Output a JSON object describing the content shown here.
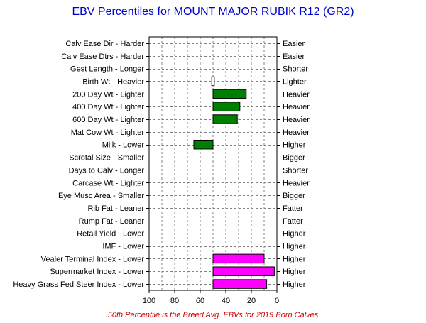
{
  "chart_data": {
    "type": "bar",
    "orientation": "horizontal-floating",
    "title": "EBV Percentiles for MOUNT MAJOR RUBIK R12 (GR2)",
    "footnote": "50th Percentile is the Breed Avg. EBVs for 2019 Born Calves",
    "xlim": [
      100,
      0
    ],
    "xticks": [
      "100",
      "80",
      "60",
      "40",
      "20",
      "0"
    ],
    "grid": true,
    "colors": {
      "green": "#008000",
      "magenta": "#ff00ff",
      "white": "#ffffff",
      "title": "#0000cc",
      "footnote": "#cc0000"
    },
    "rows": [
      {
        "left": "Calv Ease Dir - Harder",
        "right": "Easier"
      },
      {
        "left": "Calv Ease Dtrs - Harder",
        "right": "Easier"
      },
      {
        "left": "Gest Length - Longer",
        "right": "Shorter"
      },
      {
        "left": "Birth Wt - Heavier",
        "right": "Lighter",
        "bar": [
          49,
          51
        ],
        "color": "white"
      },
      {
        "left": "200 Day Wt - Lighter",
        "right": "Heavier",
        "bar": [
          50,
          24
        ],
        "color": "green"
      },
      {
        "left": "400 Day Wt - Lighter",
        "right": "Heavier",
        "bar": [
          50,
          29
        ],
        "color": "green"
      },
      {
        "left": "600 Day Wt - Lighter",
        "right": "Heavier",
        "bar": [
          50,
          31
        ],
        "color": "green"
      },
      {
        "left": "Mat Cow Wt - Lighter",
        "right": "Heavier"
      },
      {
        "left": "Milk - Lower",
        "right": "Higher",
        "bar": [
          50,
          65
        ],
        "color": "green"
      },
      {
        "left": "Scrotal Size - Smaller",
        "right": "Bigger"
      },
      {
        "left": "Days to Calv - Longer",
        "right": "Shorter"
      },
      {
        "left": "Carcase Wt - Lighter",
        "right": "Heavier"
      },
      {
        "left": "Eye Musc Area - Smaller",
        "right": "Bigger"
      },
      {
        "left": "Rib Fat - Leaner",
        "right": "Fatter"
      },
      {
        "left": "Rump Fat - Leaner",
        "right": "Fatter"
      },
      {
        "left": "Retail Yield - Lower",
        "right": "Higher"
      },
      {
        "left": "IMF - Lower",
        "right": "Higher"
      },
      {
        "left": "Vealer Terminal Index - Lower",
        "right": "Higher",
        "bar": [
          50,
          10
        ],
        "color": "magenta"
      },
      {
        "left": "Supermarket Index - Lower",
        "right": "Higher",
        "bar": [
          50,
          2
        ],
        "color": "magenta"
      },
      {
        "left": "Heavy Grass Fed Steer Index - Lower",
        "right": "Higher",
        "bar": [
          50,
          8
        ],
        "color": "magenta"
      }
    ]
  }
}
